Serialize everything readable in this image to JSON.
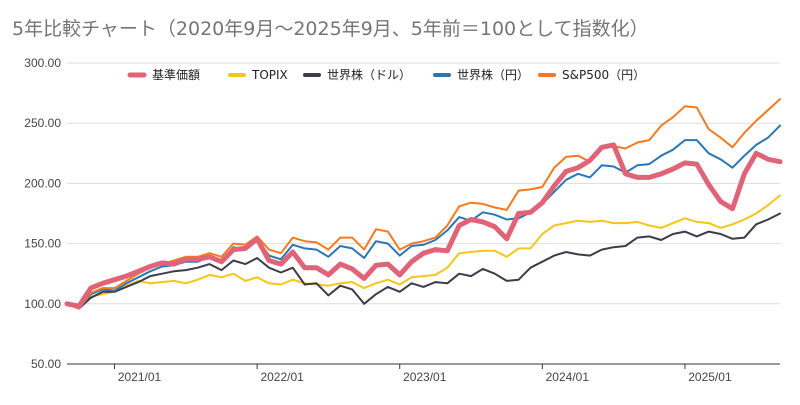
{
  "chart_data": {
    "type": "line",
    "title": "5年比較チャート（2020年9月〜2025年9月、5年前＝100として指数化）",
    "xlabel": "",
    "ylabel": "",
    "ylim": [
      50,
      300
    ],
    "y_ticks": [
      "50.00",
      "100.00",
      "150.00",
      "200.00",
      "250.00",
      "300.00"
    ],
    "x_ticks": [
      "2021/01",
      "2022/01",
      "2023/01",
      "2024/01",
      "2025/01"
    ],
    "x_start": "2020/09",
    "x_end": "2025/09",
    "grid": true,
    "legend_position": "top",
    "series": [
      {
        "name": "基準価額",
        "color": "#e06377",
        "width": 5,
        "values": [
          100,
          98,
          113,
          117,
          120,
          123,
          127,
          131,
          134,
          133,
          137,
          137,
          139,
          135,
          145,
          146,
          154,
          136,
          133,
          143,
          130,
          130,
          124,
          133,
          129,
          121,
          132,
          133,
          124,
          135,
          142,
          145,
          144,
          165,
          170,
          168,
          164,
          154,
          175,
          176,
          184,
          198,
          210,
          213,
          219,
          230,
          232,
          208,
          205,
          205,
          208,
          212,
          217,
          216,
          199,
          185,
          179,
          208,
          225,
          220,
          218
        ]
      },
      {
        "name": "TOPIX",
        "color": "#f5c518",
        "width": 2,
        "values": [
          100,
          97,
          106,
          108,
          110,
          115,
          119,
          117,
          118,
          119,
          117,
          120,
          124,
          122,
          125,
          119,
          122,
          117,
          116,
          120,
          117,
          116,
          115,
          117,
          118,
          113,
          117,
          120,
          116,
          122,
          123,
          124,
          130,
          142,
          143,
          144,
          144,
          139,
          146,
          146,
          158,
          165,
          167,
          169,
          168,
          169,
          167,
          167,
          168,
          165,
          163,
          167,
          171,
          168,
          167,
          163,
          166,
          170,
          175,
          182,
          190
        ]
      },
      {
        "name": "世界株（ドル）",
        "color": "#3c3c4a",
        "width": 2,
        "values": [
          100,
          96,
          105,
          110,
          110,
          114,
          118,
          123,
          125,
          127,
          128,
          130,
          133,
          128,
          136,
          133,
          138,
          130,
          126,
          130,
          116,
          117,
          107,
          115,
          112,
          100,
          108,
          114,
          110,
          117,
          114,
          118,
          117,
          125,
          123,
          129,
          125,
          119,
          120,
          130,
          135,
          140,
          143,
          141,
          140,
          145,
          147,
          148,
          155,
          156,
          153,
          158,
          160,
          156,
          160,
          158,
          154,
          155,
          166,
          170,
          175
        ]
      },
      {
        "name": "世界株（円）",
        "color": "#2a77b4",
        "width": 2,
        "values": [
          100,
          96,
          108,
          112,
          111,
          117,
          122,
          127,
          131,
          132,
          135,
          135,
          139,
          136,
          147,
          145,
          154,
          140,
          137,
          149,
          146,
          145,
          139,
          148,
          146,
          138,
          152,
          150,
          140,
          148,
          149,
          153,
          161,
          172,
          169,
          176,
          174,
          170,
          171,
          176,
          183,
          193,
          203,
          208,
          205,
          215,
          214,
          209,
          215,
          216,
          223,
          228,
          236,
          236,
          225,
          220,
          213,
          223,
          232,
          238,
          248
        ]
      },
      {
        "name": "S&P500（円）",
        "color": "#f47a20",
        "width": 2,
        "values": [
          100,
          96,
          109,
          113,
          113,
          119,
          125,
          130,
          133,
          136,
          139,
          139,
          142,
          139,
          150,
          149,
          156,
          145,
          142,
          155,
          152,
          151,
          145,
          155,
          155,
          145,
          162,
          160,
          145,
          150,
          152,
          155,
          165,
          181,
          184,
          183,
          180,
          178,
          194,
          195,
          197,
          213,
          222,
          223,
          218,
          230,
          231,
          229,
          234,
          236,
          248,
          255,
          264,
          263,
          245,
          238,
          230,
          242,
          252,
          261,
          270
        ]
      }
    ]
  }
}
